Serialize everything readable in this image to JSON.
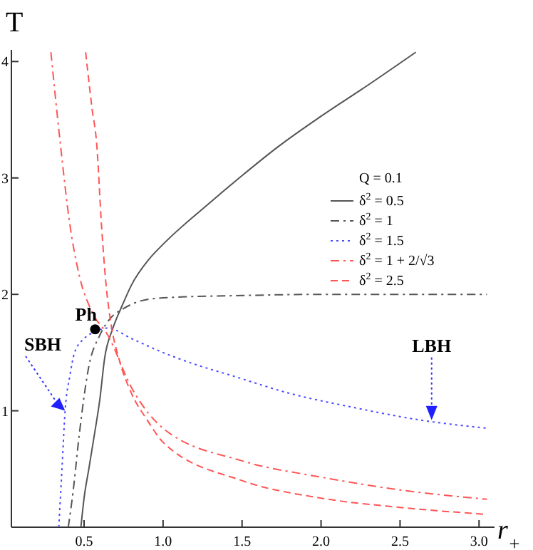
{
  "chart_data": {
    "type": "line",
    "xlabel": "r$_{+}$",
    "ylabel": "T",
    "legend_title": "Q = 0.1",
    "legend": "right",
    "grid": false,
    "xlim": [
      0.04,
      3.08
    ],
    "ylim": [
      0,
      4.1
    ],
    "xticks": [
      {
        "value": 0.5,
        "label": "0.5"
      },
      {
        "value": 1,
        "label": "1.0"
      },
      {
        "value": 1.5,
        "label": "1.5"
      },
      {
        "value": 2,
        "label": "2.0"
      },
      {
        "value": 2.5,
        "label": "2.5"
      },
      {
        "value": 3,
        "label": "3.0"
      }
    ],
    "yticks": [
      1,
      2,
      3,
      4
    ],
    "series": [
      {
        "name": "δ$^{2}$ = 0.5",
        "color": "#555555",
        "line_style": "solid",
        "x": [
          0.48,
          0.5,
          0.53,
          0.56,
          0.6,
          0.63,
          0.68,
          0.74,
          0.8,
          0.91,
          1.0,
          1.29,
          1.5,
          1.73,
          2.0,
          2.3,
          2.6
        ],
        "values": [
          0,
          0.25,
          0.5,
          0.75,
          1.1,
          1.45,
          1.7,
          1.9,
          2.08,
          2.3,
          2.43,
          2.78,
          3.02,
          3.27,
          3.53,
          3.8,
          4.08
        ]
      },
      {
        "name": "δ$^{2}$ = 1",
        "color": "#555555",
        "line_style": "dashdot",
        "x": [
          0.4,
          0.43,
          0.47,
          0.53,
          0.6,
          0.67,
          0.74,
          0.85,
          1.0,
          1.5,
          2.0,
          2.5,
          3.05
        ],
        "values": [
          0,
          0.3,
          0.8,
          1.38,
          1.65,
          1.8,
          1.87,
          1.94,
          1.97,
          1.99,
          2.0,
          2.0,
          2.0
        ]
      },
      {
        "name": "δ$^{2}$ = 1.5",
        "color": "#4a4aff",
        "line_style": "dotted",
        "x": [
          0.34,
          0.36,
          0.38,
          0.41,
          0.44,
          0.5,
          0.57,
          0.65,
          0.8,
          1.0,
          1.2,
          1.44,
          1.8,
          2.2,
          2.63,
          3.05
        ],
        "values": [
          0,
          0.5,
          1.0,
          1.3,
          1.5,
          1.62,
          1.68,
          1.71,
          1.62,
          1.5,
          1.4,
          1.3,
          1.15,
          1.03,
          0.92,
          0.85
        ]
      },
      {
        "name": "δ$^{2}$ = 1 + 2/√3",
        "color": "#ff5555",
        "line_style": "dashdot",
        "x": [
          0.29,
          0.35,
          0.41,
          0.47,
          0.55,
          0.65,
          0.8,
          1.0,
          1.5,
          2.0,
          2.5,
          3.05
        ],
        "values": [
          4.08,
          3.29,
          2.6,
          2.16,
          1.85,
          1.65,
          1.2,
          0.85,
          0.57,
          0.43,
          0.32,
          0.24
        ]
      },
      {
        "name": "δ$^{2}$ = 2.5",
        "color": "#ff5555",
        "line_style": "dashed",
        "x": [
          0.51,
          0.55,
          0.58,
          0.61,
          0.64,
          0.67,
          0.72,
          0.8,
          0.9,
          1.0,
          1.5,
          2.0,
          2.5,
          3.05
        ],
        "values": [
          4.08,
          3.6,
          3.29,
          2.6,
          2.07,
          1.75,
          1.45,
          1.15,
          0.92,
          0.73,
          0.4,
          0.25,
          0.17,
          0.11
        ]
      },
      {
        "type": "scatter",
        "color": "#000000",
        "marker": "circle",
        "x": [
          0.57
        ],
        "values": [
          1.7
        ]
      }
    ],
    "annotations": [
      {
        "text": "Ph",
        "x": 0.57,
        "y": 1.7
      },
      {
        "text": "SBH",
        "x": 0.38,
        "y": 1.0
      },
      {
        "text": "LBH",
        "x": 2.7,
        "y": 0.92
      }
    ]
  }
}
